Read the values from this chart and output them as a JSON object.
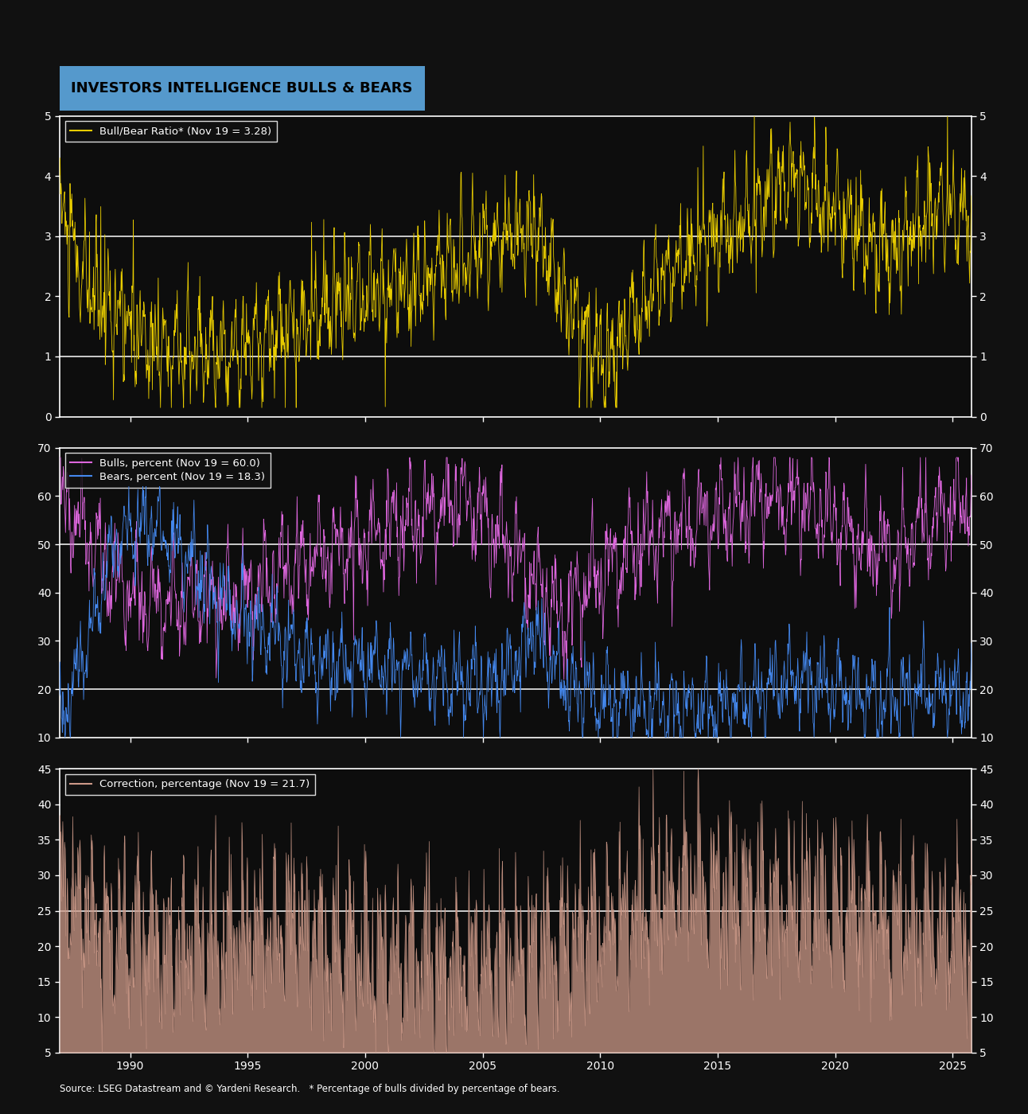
{
  "title": "INVESTORS INTELLIGENCE BULLS & BEARS",
  "title_bg": "#5599cc",
  "background_color": "#111111",
  "panel_bg": "#0d0d0d",
  "border_color": "#ffffff",
  "text_color": "#ffffff",
  "source_text": "Source: LSEG Datastream and © Yardeni Research.   * Percentage of bulls divided by percentage of bears.",
  "panel1": {
    "legend": "Bull/Bear Ratio* (Nov 19 = 3.28)",
    "line_color": "#e8cc00",
    "ylim": [
      0,
      5
    ],
    "yticks": [
      0,
      1,
      2,
      3,
      4,
      5
    ],
    "hlines": [
      1,
      3
    ]
  },
  "panel2": {
    "legend_bulls": "Bulls, percent (Nov 19 = 60.0)",
    "legend_bears": "Bears, percent (Nov 19 = 18.3)",
    "bulls_color": "#dd66dd",
    "bears_color": "#4488ee",
    "ylim": [
      10,
      70
    ],
    "yticks": [
      10,
      20,
      30,
      40,
      50,
      60,
      70
    ],
    "hlines": [
      20,
      50
    ]
  },
  "panel3": {
    "legend": "Correction, percentage (Nov 19 = 21.7)",
    "line_color": "#cc9988",
    "fill_color": "#cc9988",
    "ylim": [
      5,
      45
    ],
    "yticks": [
      5,
      10,
      15,
      20,
      25,
      30,
      35,
      40,
      45
    ],
    "hlines": [
      25
    ]
  },
  "xstart": 1987.0,
  "xend": 2025.8,
  "xticks": [
    1990,
    1995,
    2000,
    2005,
    2010,
    2015,
    2020,
    2025
  ]
}
